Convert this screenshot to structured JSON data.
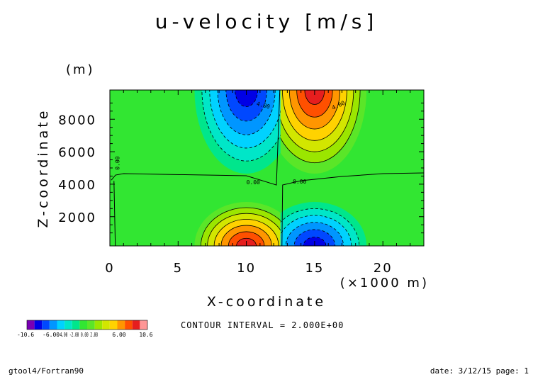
{
  "chart_data": {
    "type": "heatmap",
    "title": "u-velocity [m/s]",
    "xlabel": "X-coordinate",
    "x_unit": "(×1000 m)",
    "ylabel": "Z-coordinate",
    "y_unit": "(m)",
    "xlim": [
      0,
      23
    ],
    "ylim": [
      200,
      9800
    ],
    "x_ticks": [
      0,
      5,
      10,
      15,
      20
    ],
    "y_ticks": [
      2000,
      4000,
      6000,
      8000
    ],
    "field": {
      "description_of_structure": "four lobes: negative top-left and bottom-right, positive top-right and bottom-left, separated at x=12.5 and z=4300",
      "lobes": [
        {
          "x": 10,
          "z": 9800,
          "peak": -10.6
        },
        {
          "x": 15,
          "z": 9800,
          "peak": 10.6
        },
        {
          "x": 10,
          "z": 200,
          "peak": 10.6
        },
        {
          "x": 15,
          "z": 200,
          "peak": -10.6
        }
      ],
      "x_split": 12.5,
      "z_split": 4300
    },
    "contour_labels": [
      {
        "text": "4.00",
        "x": 11.2,
        "z": 8750,
        "angle": 15
      },
      {
        "text": "4.00",
        "x": 16.8,
        "z": 8750,
        "angle": -25
      },
      {
        "text": "0.00",
        "x": 10.5,
        "z": 4000,
        "angle": 0
      },
      {
        "text": "0.00",
        "x": 13.9,
        "z": 4050,
        "angle": 0
      },
      {
        "text": "0.00",
        "x": 0.7,
        "z": 5300,
        "angle": -90
      }
    ],
    "contour_interval": 2.0,
    "colorbar": {
      "min": -10.6,
      "max": 10.6,
      "colors": [
        "#7a00b4",
        "#0000e6",
        "#0048ff",
        "#0096ff",
        "#00d2ff",
        "#00e6c8",
        "#00e68c",
        "#32e632",
        "#5ae628",
        "#9be600",
        "#d2e600",
        "#ffd200",
        "#ff9600",
        "#ff5000",
        "#e61e1e",
        "#ff9696"
      ],
      "labels": [
        "-10.6",
        "-6.00",
        "-2.00",
        "2.00",
        "6.00",
        "10.6"
      ],
      "overlap_text": "-4.00 -2.00 0.00 2.00"
    }
  },
  "contour_interval_text": "CONTOUR INTERVAL = 2.000E+00",
  "footer": {
    "left": "gtool4/Fortran90",
    "right": "date: 3/12/15 page: 1"
  }
}
